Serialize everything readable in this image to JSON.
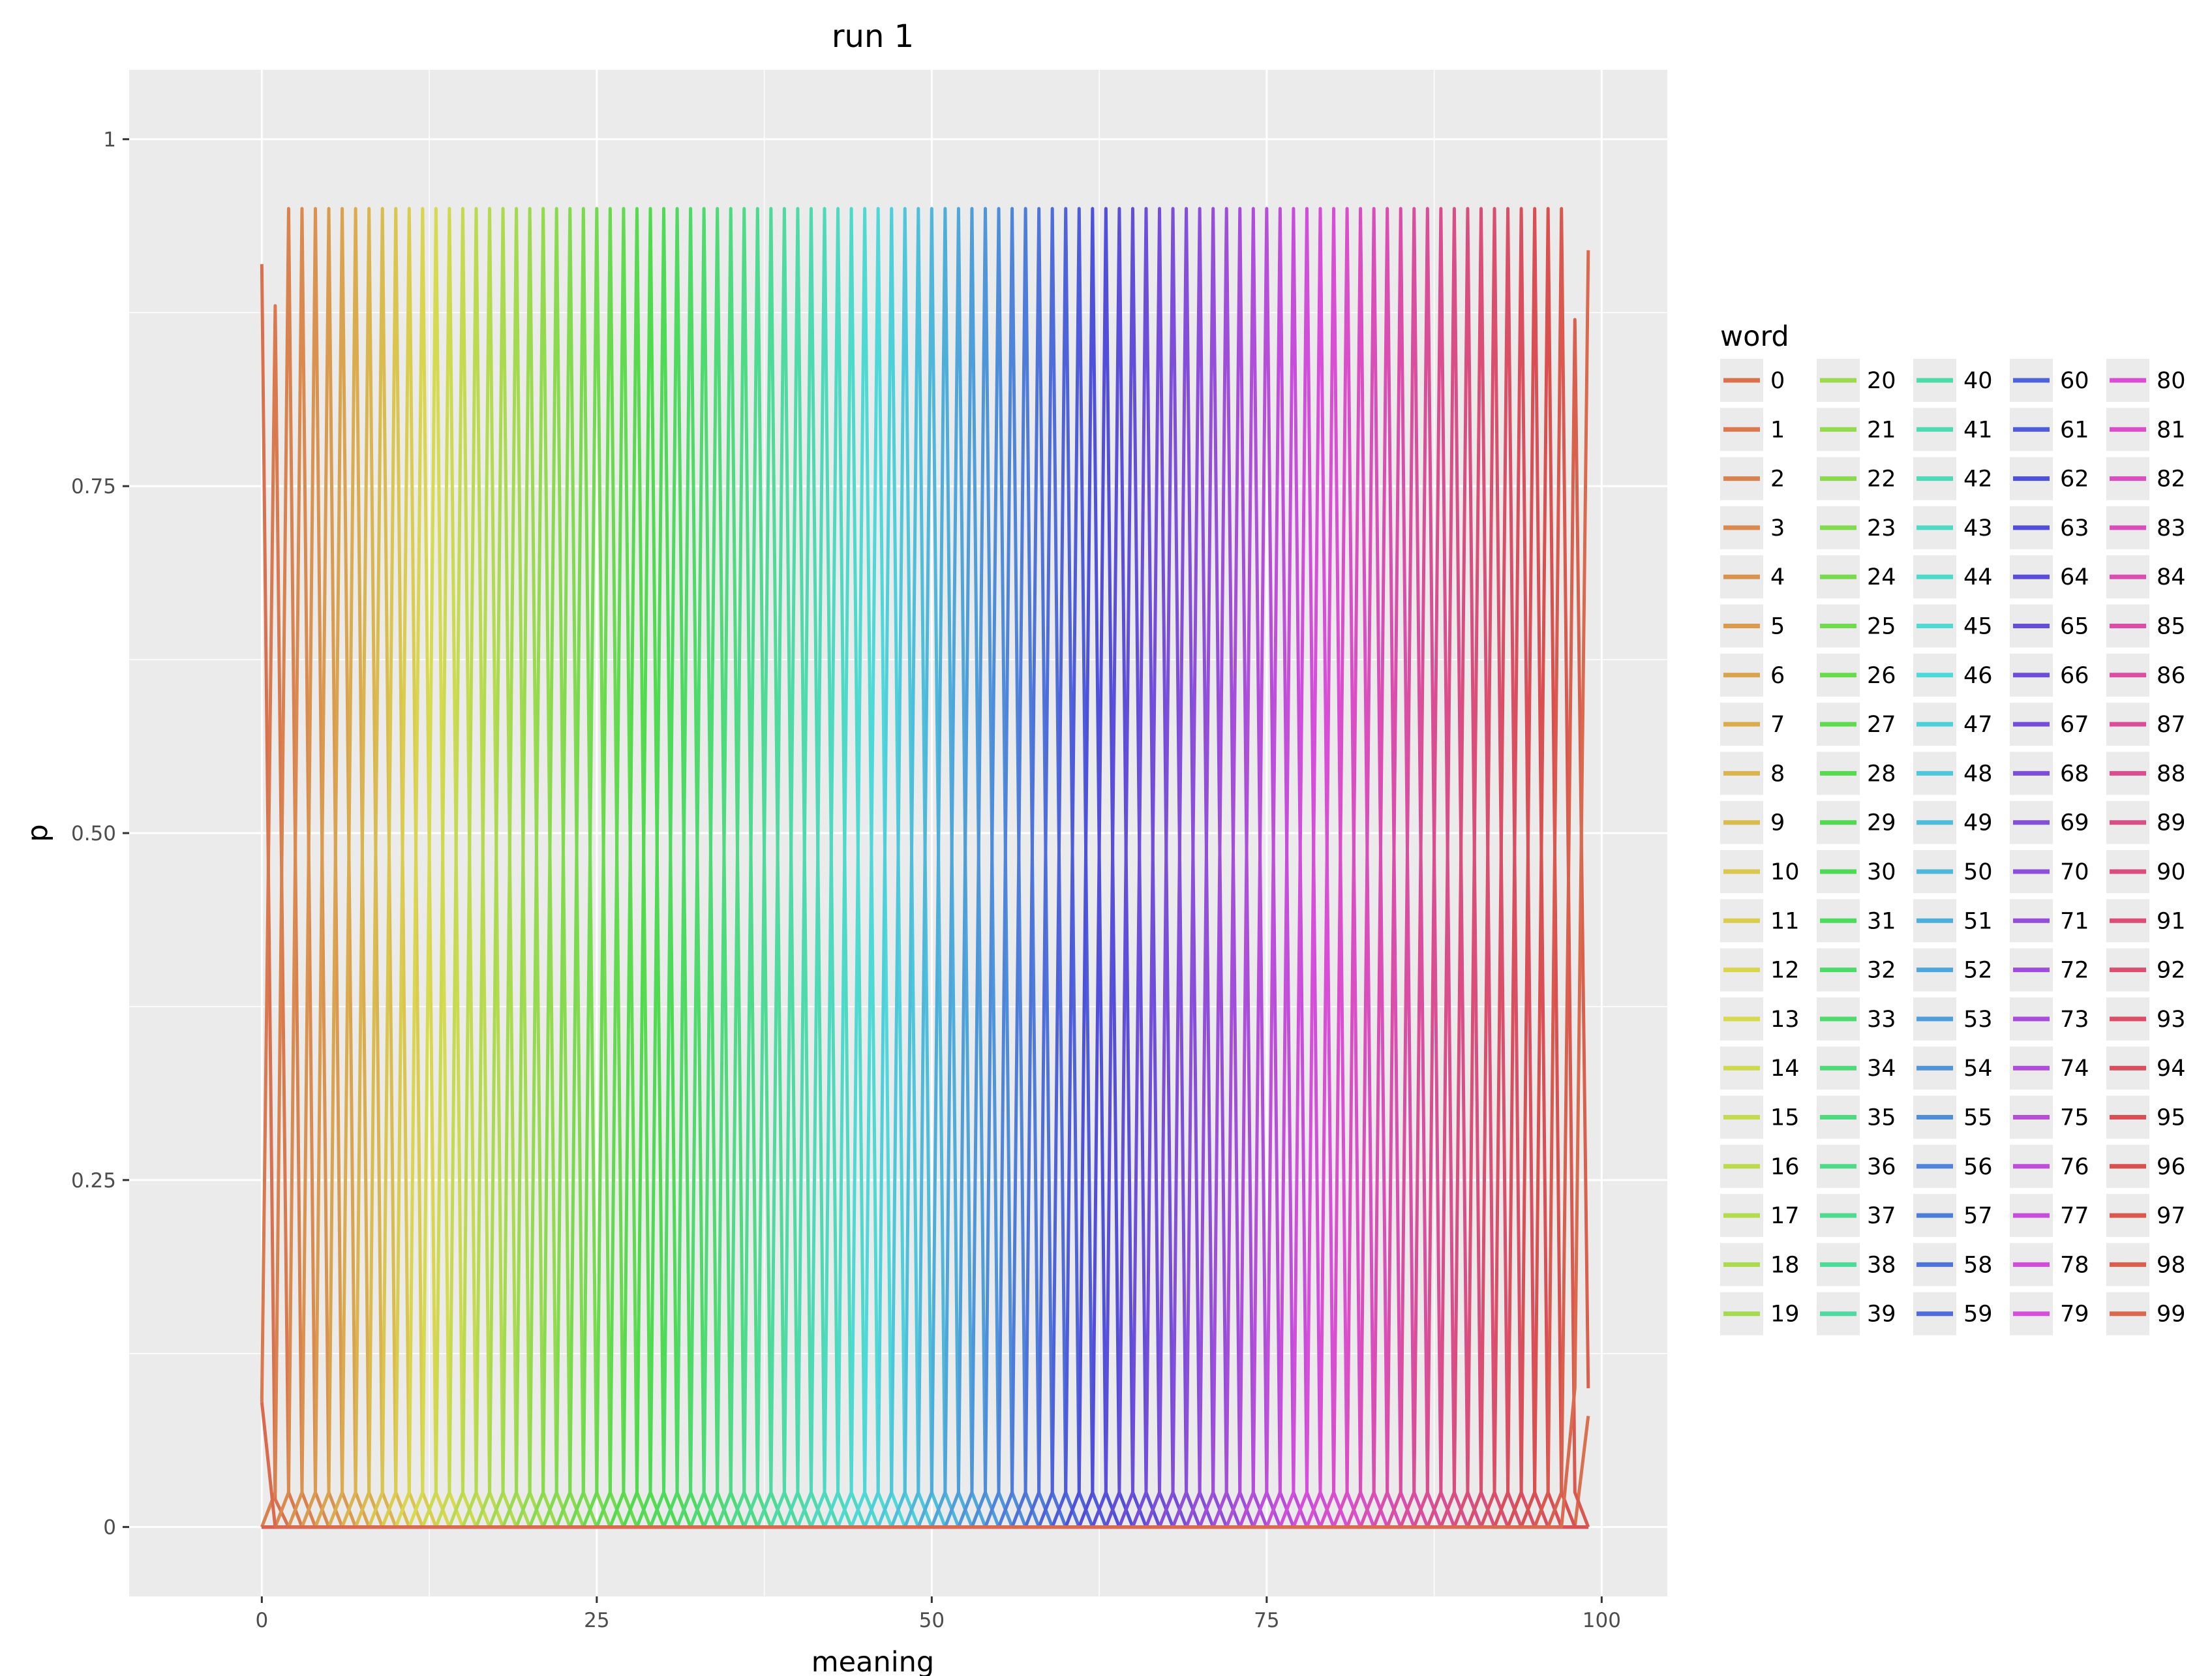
{
  "chart_data": {
    "type": "line",
    "title": "run 1",
    "xlabel": "meaning",
    "ylabel": "p",
    "xlim": [
      -9.9,
      104.9
    ],
    "ylim": [
      -0.05,
      1.05
    ],
    "x_ticks": [
      0,
      25,
      50,
      75,
      100
    ],
    "x_tick_labels": [
      "0",
      "25",
      "50",
      "75",
      "100"
    ],
    "y_ticks": [
      0,
      0.25,
      0.5,
      0.75,
      1
    ],
    "y_tick_labels": [
      "0",
      "0.25",
      "0.50",
      "0.75",
      "1"
    ],
    "grid": true,
    "background": "#ebebeb",
    "legend": {
      "title": "word",
      "placement": "right",
      "columns": 5,
      "entries": [
        "0",
        "1",
        "2",
        "3",
        "4",
        "5",
        "6",
        "7",
        "8",
        "9",
        "10",
        "11",
        "12",
        "13",
        "14",
        "15",
        "16",
        "17",
        "18",
        "19",
        "20",
        "21",
        "22",
        "23",
        "24",
        "25",
        "26",
        "27",
        "28",
        "29",
        "30",
        "31",
        "32",
        "33",
        "34",
        "35",
        "36",
        "37",
        "38",
        "39",
        "40",
        "41",
        "42",
        "43",
        "44",
        "45",
        "46",
        "47",
        "48",
        "49",
        "50",
        "51",
        "52",
        "53",
        "54",
        "55",
        "56",
        "57",
        "58",
        "59",
        "60",
        "61",
        "62",
        "63",
        "64",
        "65",
        "66",
        "67",
        "68",
        "69",
        "70",
        "71",
        "72",
        "73",
        "74",
        "75",
        "76",
        "77",
        "78",
        "79",
        "80",
        "81",
        "82",
        "83",
        "84",
        "85",
        "86",
        "87",
        "88",
        "89",
        "90",
        "91",
        "92",
        "93",
        "94",
        "95",
        "96",
        "97",
        "98",
        "99"
      ]
    },
    "series_description": "100 series, one per word w (0-99); each is a narrow peak at meaning = w with p about 0.95, falling to about 0.025 at neighbouring meanings and 0 elsewhere",
    "peak_value": 0.95,
    "neighbor_value": 0.025,
    "edge_series": {
      "0": {
        "x": [
          0,
          1,
          2,
          99
        ],
        "y": [
          0.91,
          0.02,
          0,
          0.08
        ]
      },
      "1": {
        "x": [
          0,
          1,
          2,
          3
        ],
        "y": [
          0.09,
          0.88,
          0.025,
          0
        ]
      },
      "98": {
        "x": [
          96,
          97,
          98,
          99
        ],
        "y": [
          0,
          0.025,
          0.87,
          0.1
        ]
      },
      "99": {
        "x": [
          0,
          97,
          98,
          99
        ],
        "y": [
          0.09,
          0,
          0.1,
          0.92
        ]
      }
    },
    "color_scale": {
      "hue_start": 15,
      "hue_end": 375,
      "saturation": 65,
      "lightness": 58
    }
  }
}
